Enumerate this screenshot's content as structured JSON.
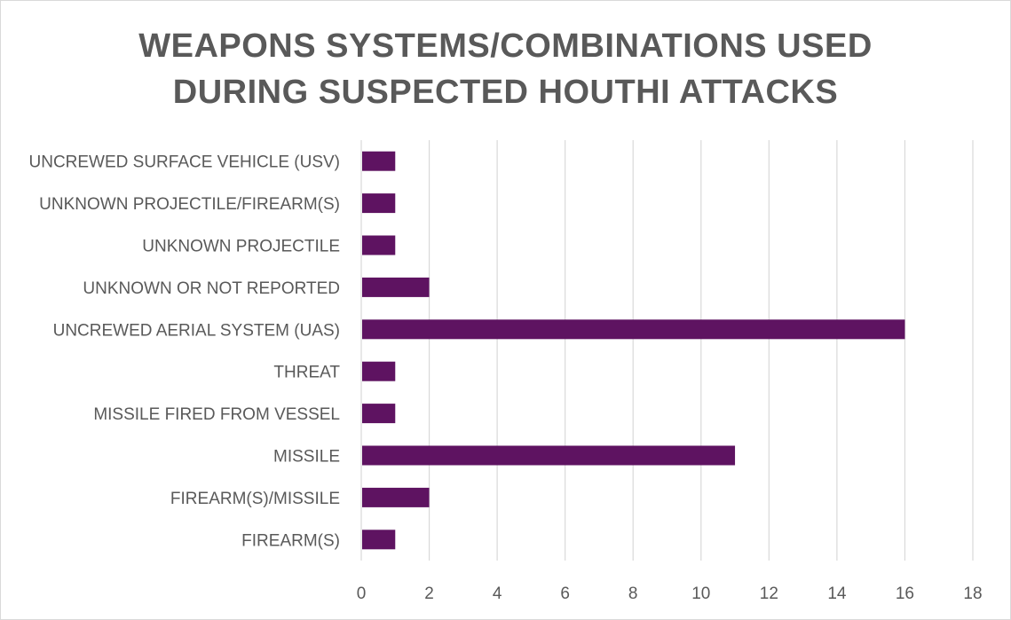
{
  "chart_data": {
    "type": "bar",
    "orientation": "horizontal",
    "title": [
      "WEAPONS SYSTEMS/COMBINATIONS USED",
      "DURING SUSPECTED HOUTHI ATTACKS"
    ],
    "categories": [
      "UNCREWED SURFACE VEHICLE (USV)",
      "UNKNOWN PROJECTILE/FIREARM(S)",
      "UNKNOWN PROJECTILE",
      "UNKNOWN OR NOT REPORTED",
      "UNCREWED AERIAL SYSTEM (UAS)",
      "THREAT",
      "MISSILE FIRED FROM VESSEL",
      "MISSILE",
      "FIREARM(S)/MISSILE",
      "FIREARM(S)"
    ],
    "values": [
      1,
      1,
      1,
      2,
      16,
      1,
      1,
      11,
      2,
      1
    ],
    "xlim": [
      0,
      18
    ],
    "x_ticks": [
      0,
      2,
      4,
      6,
      8,
      10,
      12,
      14,
      16,
      18
    ],
    "xlabel": "",
    "ylabel": "",
    "grid": "vertical",
    "legend": "none",
    "colors": {
      "bar": "#5e1361",
      "gridline": "#d9d9d9",
      "text": "#595959"
    }
  }
}
